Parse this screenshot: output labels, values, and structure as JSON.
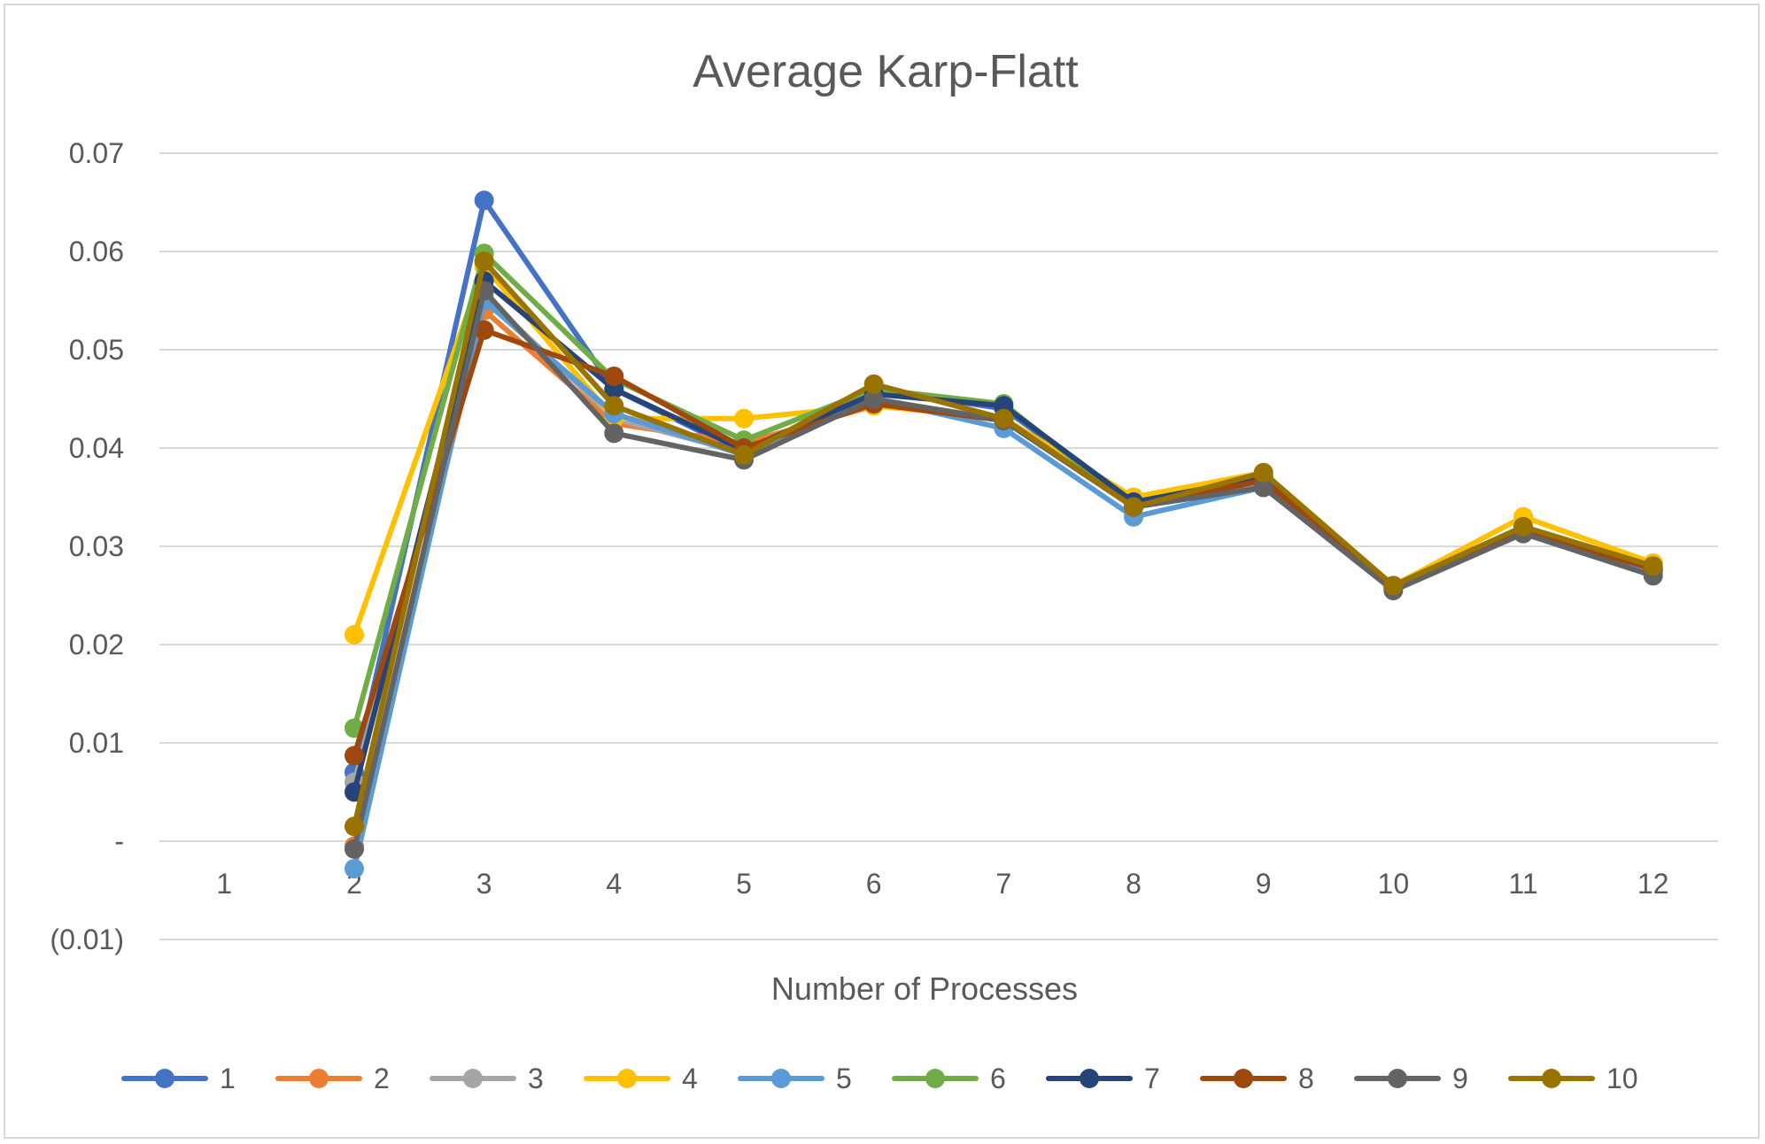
{
  "chart_data": {
    "type": "line",
    "title": "Average Karp-Flatt",
    "xlabel": "Number of Processes",
    "ylabel": "",
    "categories": [
      "1",
      "2",
      "3",
      "4",
      "5",
      "6",
      "7",
      "8",
      "9",
      "10",
      "11",
      "12"
    ],
    "ylim": [
      -0.01,
      0.07
    ],
    "y_ticks": [
      0.07,
      0.06,
      0.05,
      0.04,
      0.03,
      0.02,
      0.01,
      0,
      -0.01
    ],
    "y_tick_labels": [
      "0.07",
      "0.06",
      "0.05",
      "0.04",
      "0.03",
      "0.02",
      "0.01",
      "-",
      "(0.01)"
    ],
    "grid": true,
    "legend_position": "bottom",
    "series": [
      {
        "name": "1",
        "color": "#4472c4",
        "values": [
          null,
          0.007,
          0.0652,
          0.046,
          0.0395,
          0.046,
          0.044,
          0.0345,
          0.037,
          0.0258,
          0.0315,
          0.0275
        ]
      },
      {
        "name": "2",
        "color": "#ed7d31",
        "values": [
          null,
          -0.0005,
          0.054,
          0.0425,
          0.0405,
          0.0443,
          0.043,
          0.034,
          0.0365,
          0.026,
          0.0315,
          0.0277
        ]
      },
      {
        "name": "3",
        "color": "#a5a5a5",
        "values": [
          null,
          0.006,
          0.0555,
          0.043,
          0.0395,
          0.0448,
          0.043,
          0.034,
          0.0365,
          0.0258,
          0.0315,
          0.0275
        ]
      },
      {
        "name": "4",
        "color": "#ffc000",
        "values": [
          null,
          0.021,
          0.0585,
          0.043,
          0.043,
          0.0443,
          0.043,
          0.035,
          0.0375,
          0.026,
          0.033,
          0.0283
        ]
      },
      {
        "name": "5",
        "color": "#5b9bd5",
        "values": [
          null,
          -0.0028,
          0.055,
          0.0435,
          0.0393,
          0.045,
          0.042,
          0.033,
          0.036,
          0.0258,
          0.0315,
          0.0273
        ]
      },
      {
        "name": "6",
        "color": "#70ad47",
        "values": [
          null,
          0.0115,
          0.0598,
          0.047,
          0.0408,
          0.046,
          0.0445,
          0.034,
          0.037,
          0.026,
          0.032,
          0.0278
        ]
      },
      {
        "name": "7",
        "color": "#264478",
        "values": [
          null,
          0.005,
          0.057,
          0.046,
          0.0398,
          0.0455,
          0.0443,
          0.0345,
          0.037,
          0.0258,
          0.0318,
          0.0277
        ]
      },
      {
        "name": "8",
        "color": "#9e480e",
        "values": [
          null,
          0.0087,
          0.052,
          0.0473,
          0.04,
          0.0445,
          0.0428,
          0.034,
          0.0367,
          0.0258,
          0.0315,
          0.0277
        ]
      },
      {
        "name": "9",
        "color": "#636363",
        "values": [
          null,
          -0.0008,
          0.056,
          0.0415,
          0.0388,
          0.045,
          0.0428,
          0.034,
          0.036,
          0.0255,
          0.0313,
          0.027
        ]
      },
      {
        "name": "10",
        "color": "#997300",
        "values": [
          null,
          0.0015,
          0.059,
          0.0443,
          0.0393,
          0.0465,
          0.043,
          0.034,
          0.0375,
          0.026,
          0.032,
          0.028
        ]
      }
    ]
  }
}
